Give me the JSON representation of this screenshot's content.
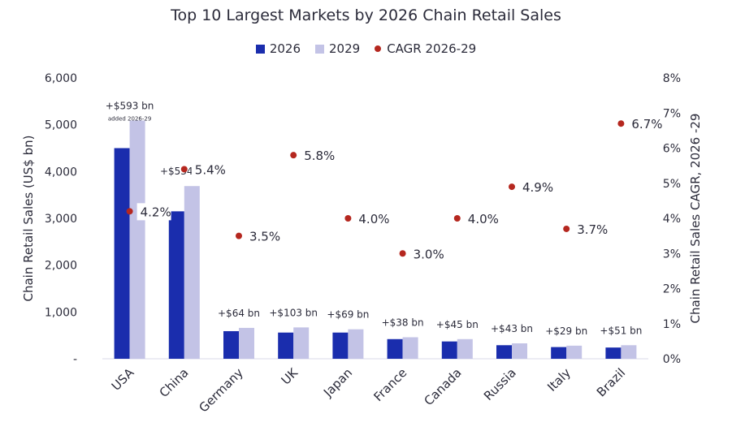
{
  "chart_data": {
    "type": "bar",
    "title": "Top 10 Largest Markets by 2026 Chain Retail Sales",
    "ylabel": "Chain Retail Sales (US$ bn)",
    "y2label": "Chain Retail Sales CAGR, 2026 -29",
    "ylim": [
      0,
      6000
    ],
    "y2lim": [
      0,
      8
    ],
    "yticks": [
      "-",
      "1,000",
      "2,000",
      "3,000",
      "4,000",
      "5,000",
      "6,000"
    ],
    "y2ticks": [
      "0%",
      "1%",
      "2%",
      "3%",
      "4%",
      "5%",
      "6%",
      "7%",
      "8%"
    ],
    "categories": [
      "USA",
      "China",
      "Germany",
      "UK",
      "Japan",
      "France",
      "Canada",
      "Russia",
      "Italy",
      "Brazil"
    ],
    "series": [
      {
        "name": "2026",
        "color": "#1a2dad",
        "values": [
          4500,
          3150,
          590,
          560,
          560,
          420,
          370,
          290,
          250,
          240
        ]
      },
      {
        "name": "2029",
        "color": "#c3c3e6",
        "values": [
          5090,
          3690,
          660,
          670,
          630,
          460,
          420,
          330,
          280,
          290
        ]
      },
      {
        "name": "CAGR 2026-29",
        "color": "#b5271f",
        "axis": "right",
        "values": [
          4.2,
          5.4,
          3.5,
          5.8,
          4.0,
          3.0,
          4.0,
          4.9,
          3.7,
          6.7
        ],
        "labels": [
          "4.2%",
          "5.4%",
          "3.5%",
          "5.8%",
          "4.0%",
          "3.0%",
          "4.0%",
          "4.9%",
          "3.7%",
          "6.7%"
        ]
      }
    ],
    "increase_labels": [
      "+$593 bn",
      "+$534 bn",
      "+$64 bn",
      "+$103 bn",
      "+$69 bn",
      "+$38 bn",
      "+$45 bn",
      "+$43 bn",
      "+$29 bn",
      "+$51 bn"
    ],
    "increase_note": "added 2026-29",
    "legend_position": "top-center",
    "grid": false
  }
}
